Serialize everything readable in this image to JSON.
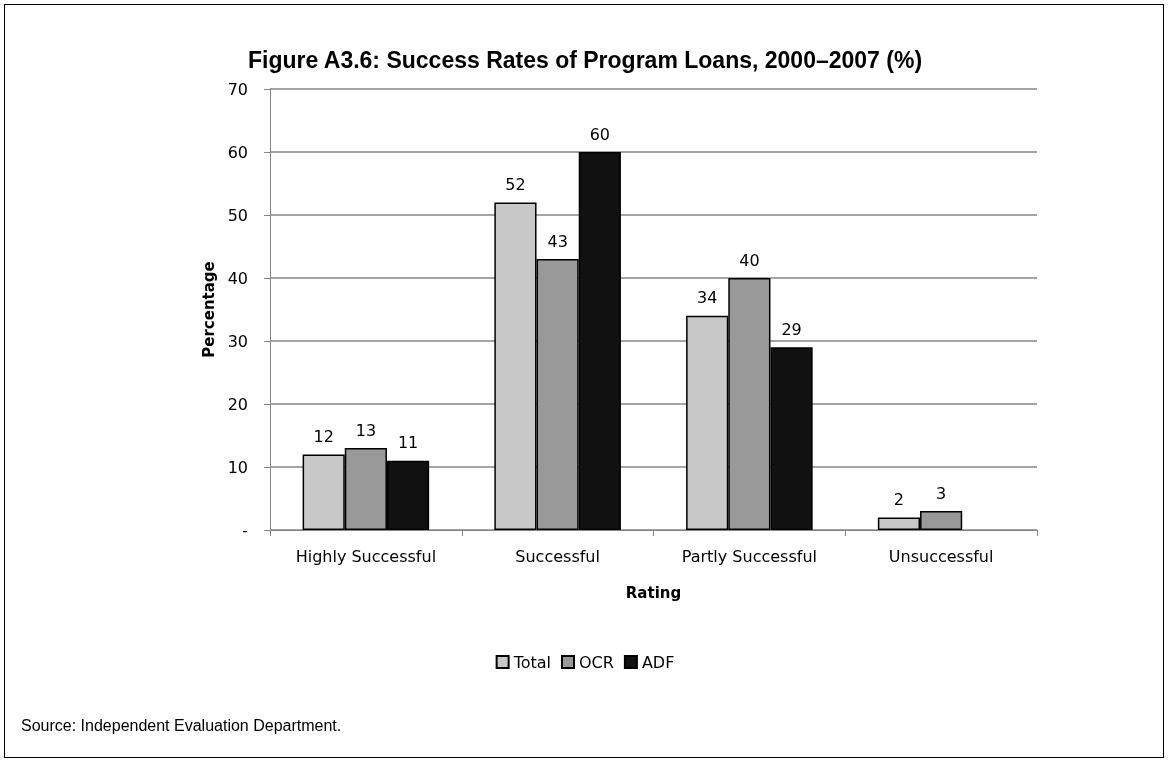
{
  "chart_data": {
    "type": "bar",
    "title": "Figure A3.6: Success Rates of Program Loans, 2000–2007 (%)",
    "xlabel": "Rating",
    "ylabel": "Percentage",
    "categories": [
      "Highly Successful",
      "Successful",
      "Partly Successful",
      "Unsuccessful"
    ],
    "series": [
      {
        "name": "Total",
        "color": "#c8c8c8",
        "values": [
          12,
          52,
          34,
          2
        ]
      },
      {
        "name": "OCR",
        "color": "#999999",
        "values": [
          13,
          43,
          40,
          3
        ]
      },
      {
        "name": "ADF",
        "color": "#111111",
        "values": [
          11,
          60,
          29,
          null
        ]
      }
    ],
    "ylim": [
      0,
      70
    ],
    "yticks": [
      {
        "value": 0,
        "label": "-"
      },
      10,
      20,
      30,
      40,
      50,
      60,
      70
    ],
    "grid": "y",
    "legend": "bottom",
    "data_labels": true,
    "annotations": [
      "Source: Independent Evaluation Department."
    ]
  }
}
